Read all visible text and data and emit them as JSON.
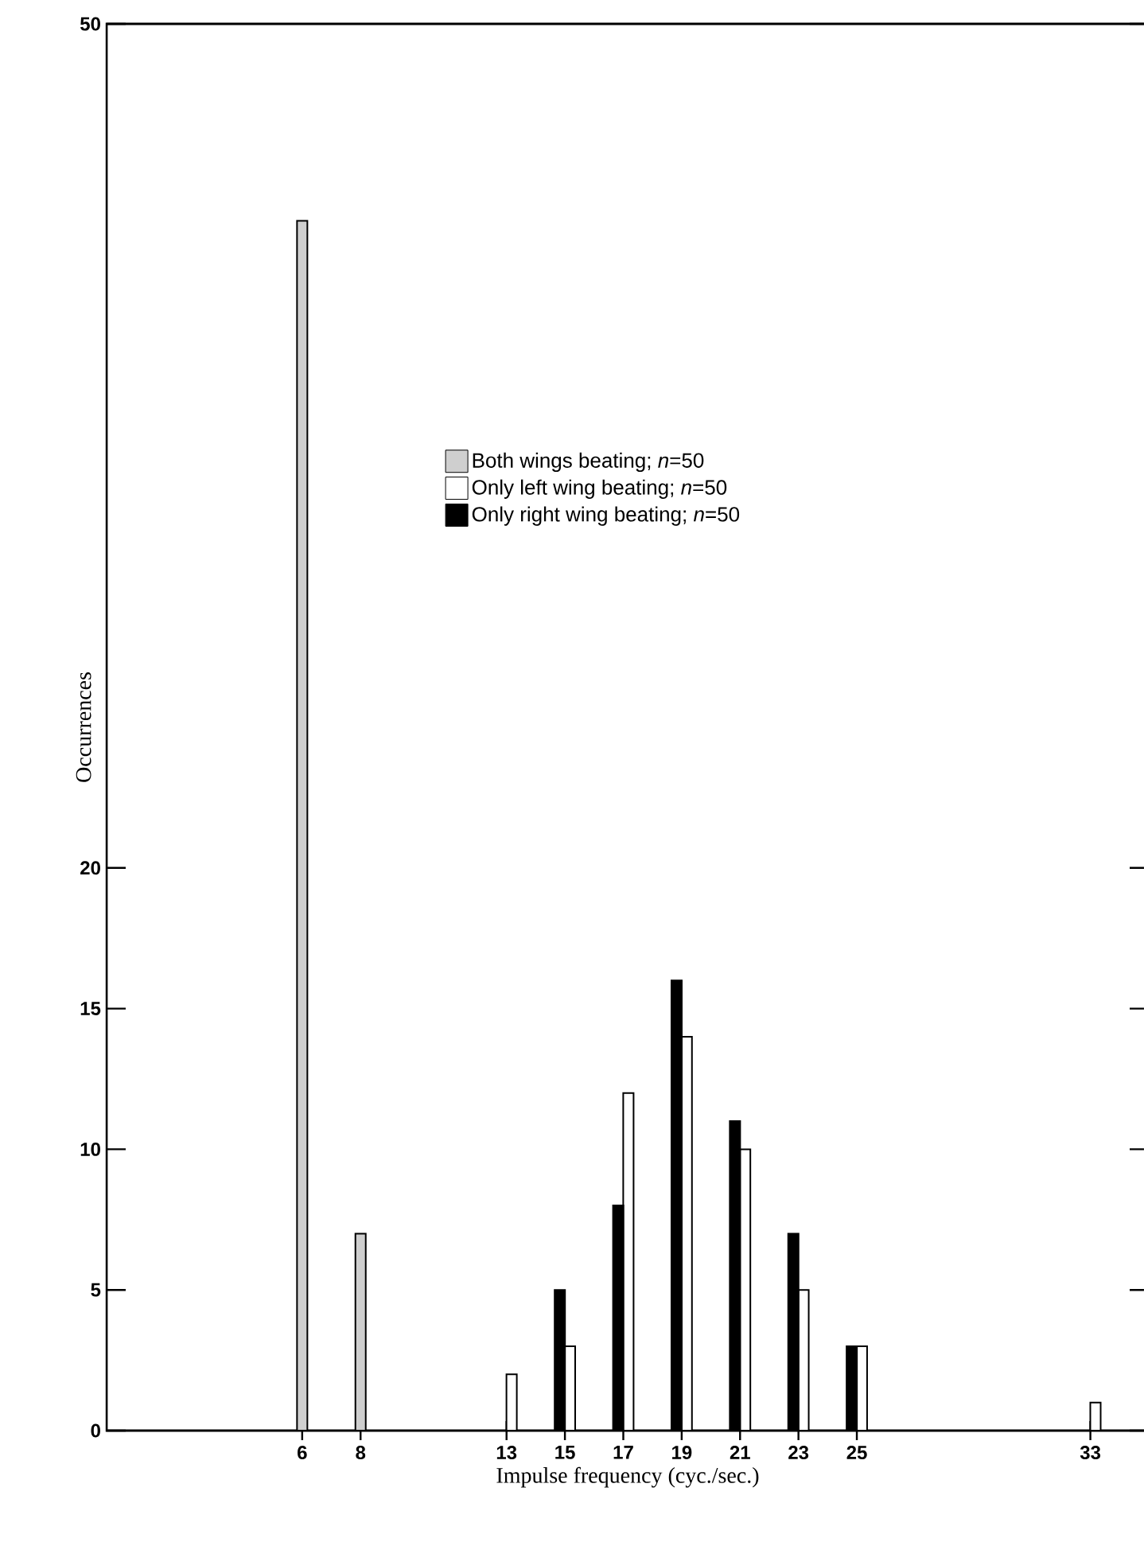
{
  "chart_data": {
    "type": "bar",
    "xlabel": "Impulse frequency (cyc./sec.)",
    "ylabel": "Occurrences",
    "series": [
      {
        "name": "Both wings beating; *n*=50",
        "color": "#cfcfcf",
        "x": [
          6,
          8
        ],
        "values": [
          43,
          7
        ]
      },
      {
        "name": "Only left wing beating; *n*=50",
        "color": "#ffffff",
        "x": [
          13,
          15,
          17,
          19,
          21,
          23,
          25,
          33
        ],
        "values": [
          2,
          3,
          12,
          14,
          10,
          5,
          3,
          1
        ]
      },
      {
        "name": "Only right wing beating; *n*=50",
        "color": "#000000",
        "x": [
          15,
          17,
          19,
          21,
          23,
          25
        ],
        "values": [
          5,
          8,
          16,
          11,
          7,
          3
        ]
      }
    ],
    "xlim": [
      -0.7,
      35
    ],
    "ylim": [
      0,
      50
    ],
    "xticks": [
      6,
      8,
      13,
      15,
      17,
      19,
      21,
      23,
      25,
      33
    ],
    "yticks": [
      0,
      5,
      10,
      15,
      20,
      50
    ],
    "legend": "top",
    "grid": false
  }
}
